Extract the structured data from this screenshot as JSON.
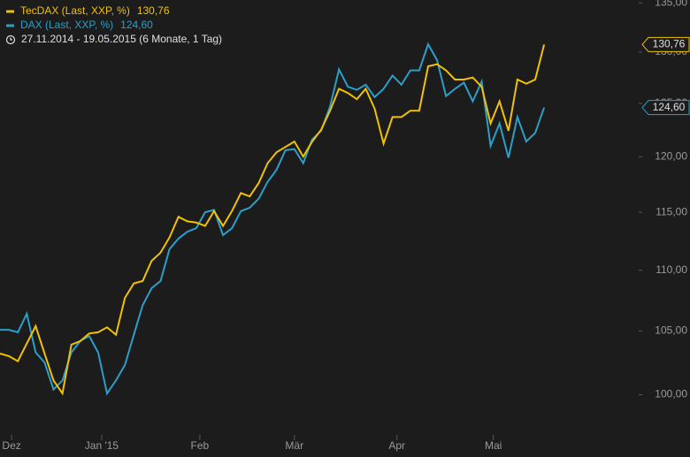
{
  "chart_data": {
    "type": "line",
    "subtitle": "27.11.2014 - 19.05.2015 (6 Monate, 1 Tag)",
    "log_scale": true,
    "grid": false,
    "xlim": [
      0,
      71.6
    ],
    "xticks": [
      {
        "value": 1.3,
        "label": "Dez"
      },
      {
        "value": 11.4,
        "label": "Jan '15"
      },
      {
        "value": 22.4,
        "label": "Feb"
      },
      {
        "value": 33.0,
        "label": "Mär"
      },
      {
        "value": 44.5,
        "label": "Apr"
      },
      {
        "value": 55.3,
        "label": "Mai"
      }
    ],
    "ylim": [
      97.1,
      135.3
    ],
    "yticks": [
      {
        "value": 100,
        "label": "100,00"
      },
      {
        "value": 105,
        "label": "105,00"
      },
      {
        "value": 110,
        "label": "110,00"
      },
      {
        "value": 115,
        "label": "115,00"
      },
      {
        "value": 120,
        "label": "120,00"
      },
      {
        "value": 125,
        "label": "125,00"
      },
      {
        "value": 130,
        "label": "130,00"
      },
      {
        "value": 135,
        "label": "135,00"
      }
    ],
    "series": [
      {
        "name": "TecDAX (Last, XXP, %)",
        "color": "#f2c200",
        "last_value_label": "130,76",
        "values": [
          103.2,
          103.0,
          102.6,
          104.0,
          105.4,
          103.2,
          101.1,
          100.1,
          103.9,
          104.2,
          104.8,
          104.9,
          105.3,
          104.7,
          107.7,
          108.9,
          109.1,
          110.8,
          111.5,
          112.8,
          114.6,
          114.2,
          114.1,
          113.8,
          115.1,
          113.8,
          115.1,
          116.7,
          116.4,
          117.6,
          119.4,
          120.4,
          120.9,
          121.4,
          120.0,
          121.4,
          122.5,
          124.3,
          126.4,
          126.0,
          125.4,
          126.4,
          124.5,
          121.2,
          123.7,
          123.7,
          124.3,
          124.3,
          128.6,
          128.8,
          128.2,
          127.3,
          127.3,
          127.5,
          126.6,
          123.1,
          125.2,
          122.4,
          127.3,
          126.9,
          127.3,
          130.76
        ]
      },
      {
        "name": "DAX (Last, XXP, %)",
        "color": "#2b9fc9",
        "last_value_label": "124,60",
        "values": [
          105.1,
          105.1,
          104.9,
          106.4,
          103.3,
          102.5,
          100.4,
          101.1,
          103.3,
          104.2,
          104.6,
          103.3,
          100.1,
          101.1,
          102.3,
          104.7,
          107.1,
          108.5,
          109.1,
          111.8,
          112.7,
          113.3,
          113.6,
          115.0,
          115.2,
          113.0,
          113.6,
          115.1,
          115.4,
          116.2,
          117.7,
          118.8,
          120.6,
          120.7,
          119.4,
          121.6,
          122.4,
          124.7,
          128.3,
          126.6,
          126.3,
          126.8,
          125.6,
          126.4,
          127.7,
          126.8,
          128.2,
          128.2,
          130.8,
          129.2,
          125.7,
          126.4,
          127.0,
          125.2,
          127.1,
          121.0,
          123.1,
          119.9,
          123.7,
          121.4,
          122.2,
          124.6
        ]
      }
    ]
  }
}
